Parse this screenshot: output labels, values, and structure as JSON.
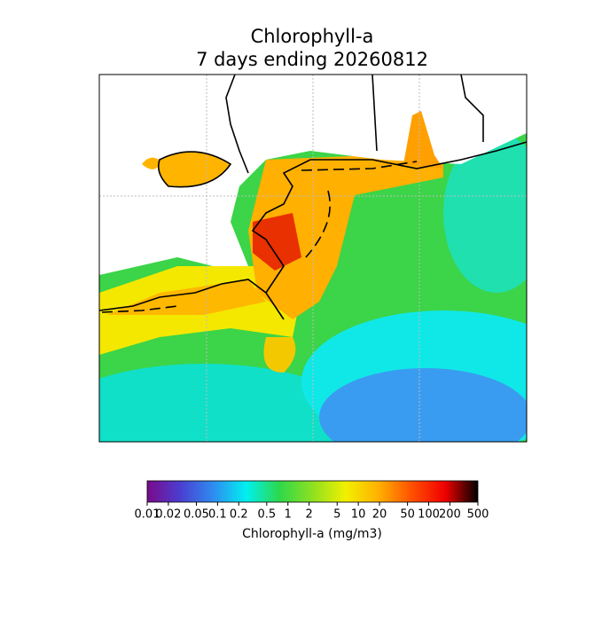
{
  "title": "Chlorophyll-a",
  "subtitle": "7 days ending 20260812",
  "colorbar": {
    "label": "Chlorophyll-a (mg/m3)",
    "log_scale": true,
    "lim": [
      0.01,
      500
    ],
    "ticks": [
      0.01,
      0.02,
      0.05,
      0.1,
      0.2,
      0.5,
      1,
      2,
      5,
      10,
      20,
      50,
      100,
      200,
      500
    ],
    "colors": [
      "#7a0a8a",
      "#4a3ed0",
      "#2e8cf0",
      "#00f0f0",
      "#2ed84a",
      "#8ee020",
      "#f2f000",
      "#ffb000",
      "#ff5000",
      "#f00000",
      "#000000"
    ]
  }
}
